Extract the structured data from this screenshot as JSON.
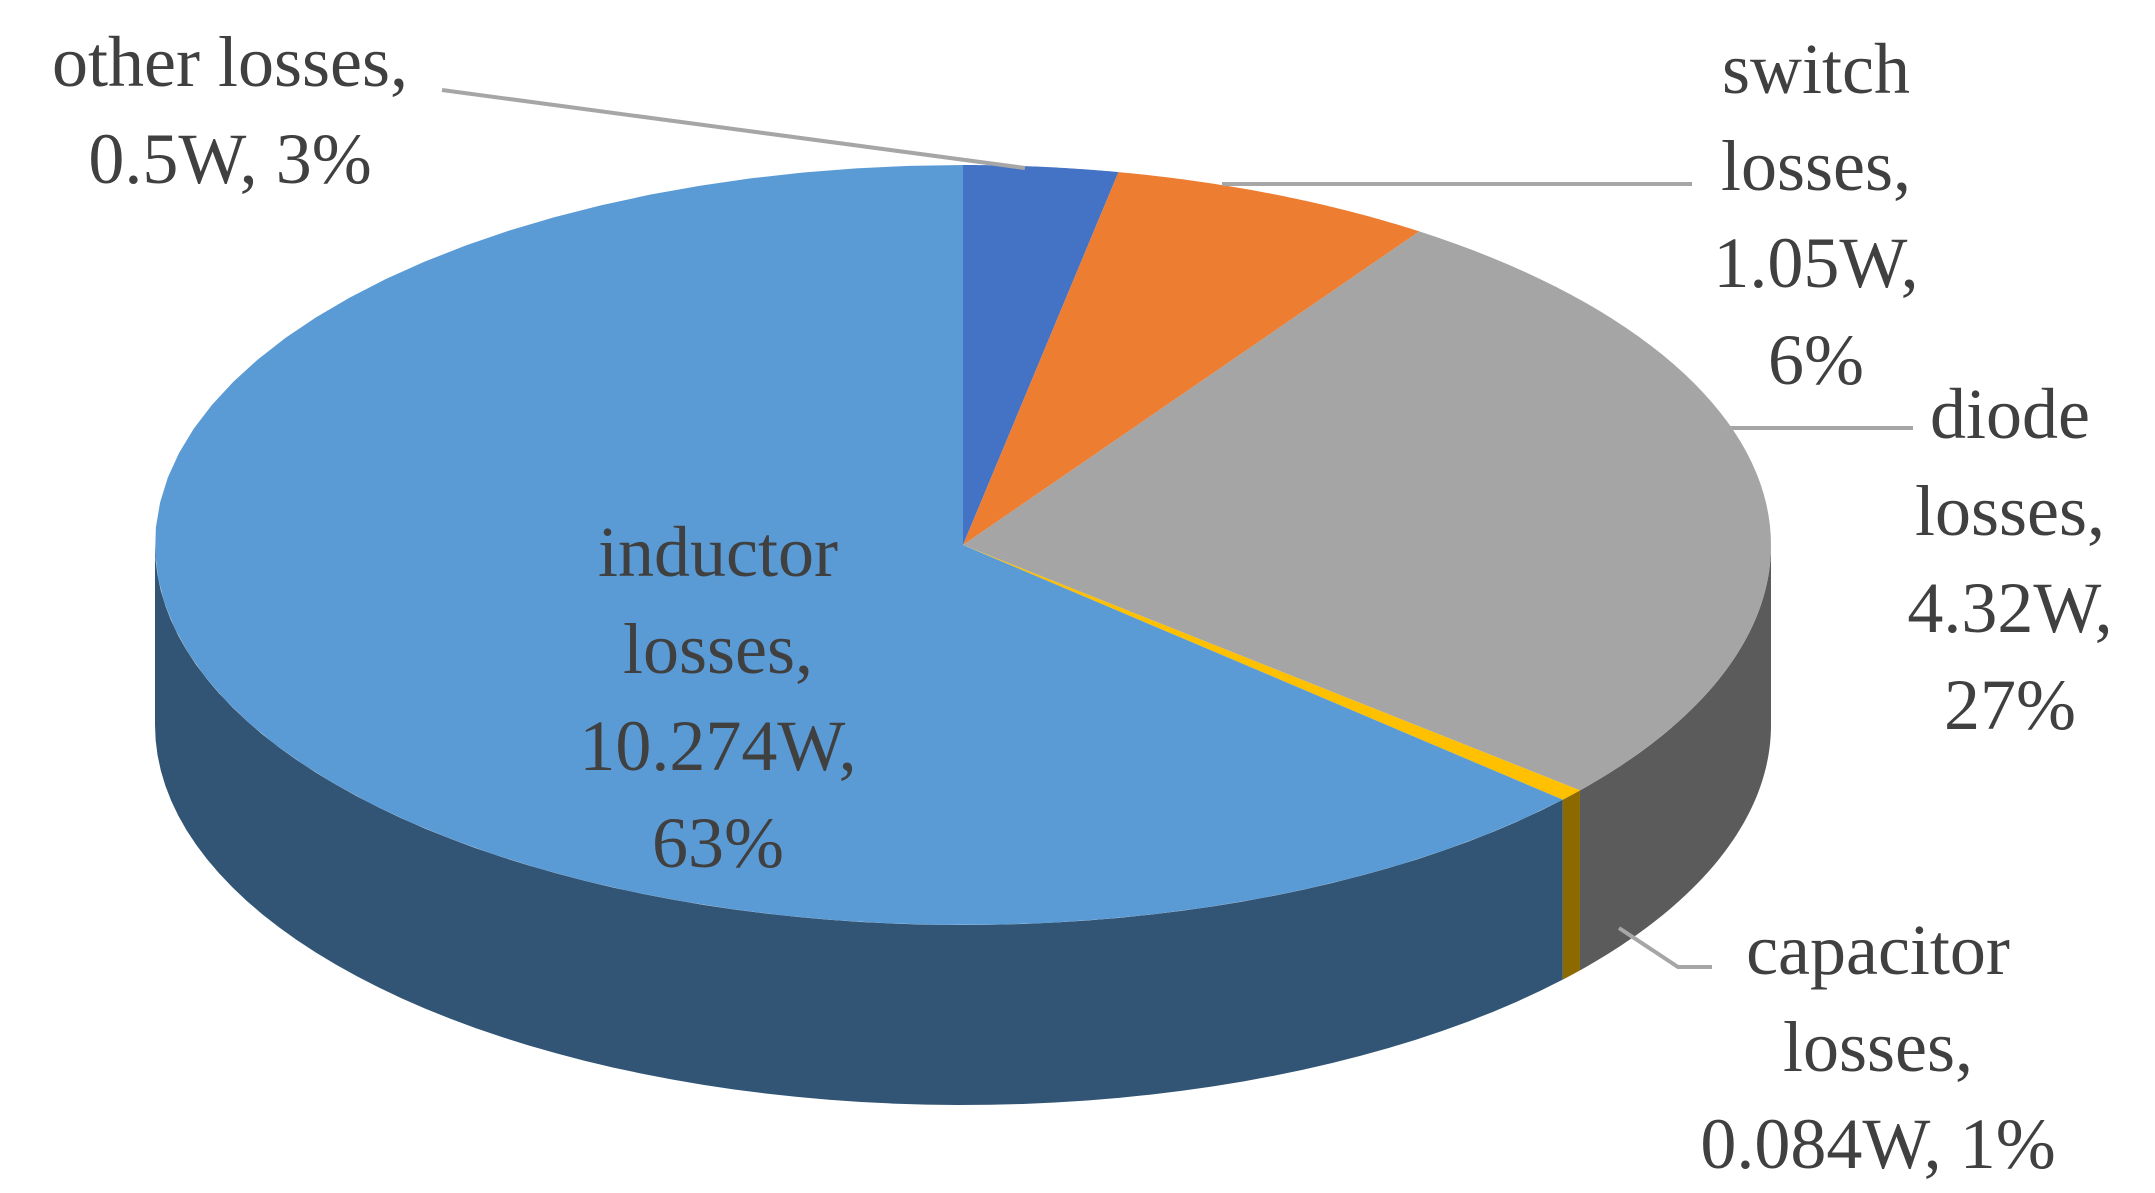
{
  "chart_data": {
    "type": "pie3d",
    "categories": [
      "other losses,",
      "switch losses,",
      "diode losses,",
      "capacitor losses,",
      "inductor losses,"
    ],
    "values": [
      0.5,
      1.05,
      4.32,
      0.084,
      10.274
    ],
    "value_labels": [
      "0.5W,",
      "1.05W,",
      "4.32W,",
      "0.084W,",
      "10.274W,"
    ],
    "percents": [
      3,
      6,
      27,
      1,
      63
    ],
    "percent_labels": [
      "3%",
      "6%",
      "27%",
      "1%",
      "63%"
    ],
    "colors": [
      "#4472c4",
      "#ed7d31",
      "#a5a5a5",
      "#ffc000",
      "#5b9bd5"
    ]
  }
}
